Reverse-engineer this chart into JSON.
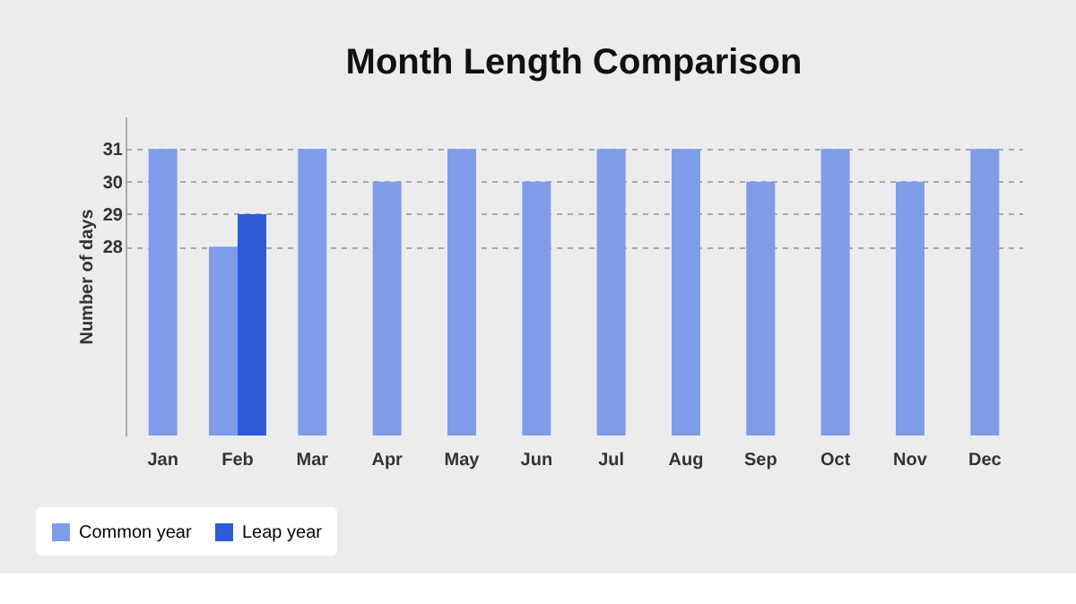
{
  "chart_data": {
    "type": "bar",
    "title": "Month Length Comparison",
    "ylabel": "Number of days",
    "categories": [
      "Jan",
      "Feb",
      "Mar",
      "Apr",
      "May",
      "Jun",
      "Jul",
      "Aug",
      "Sep",
      "Oct",
      "Nov",
      "Dec"
    ],
    "series": [
      {
        "name": "Common year",
        "color": "#7f9ce8",
        "values": [
          31,
          28,
          31,
          30,
          31,
          30,
          31,
          31,
          30,
          31,
          30,
          31
        ]
      },
      {
        "name": "Leap year",
        "color": "#2f5bd8",
        "values": [
          null,
          29,
          null,
          null,
          null,
          null,
          null,
          null,
          null,
          null,
          null,
          null
        ]
      }
    ],
    "ylim": [
      22.2,
      32
    ],
    "yticks": [
      28,
      29,
      30,
      31
    ],
    "grid": "y",
    "legend": "bottom left"
  }
}
